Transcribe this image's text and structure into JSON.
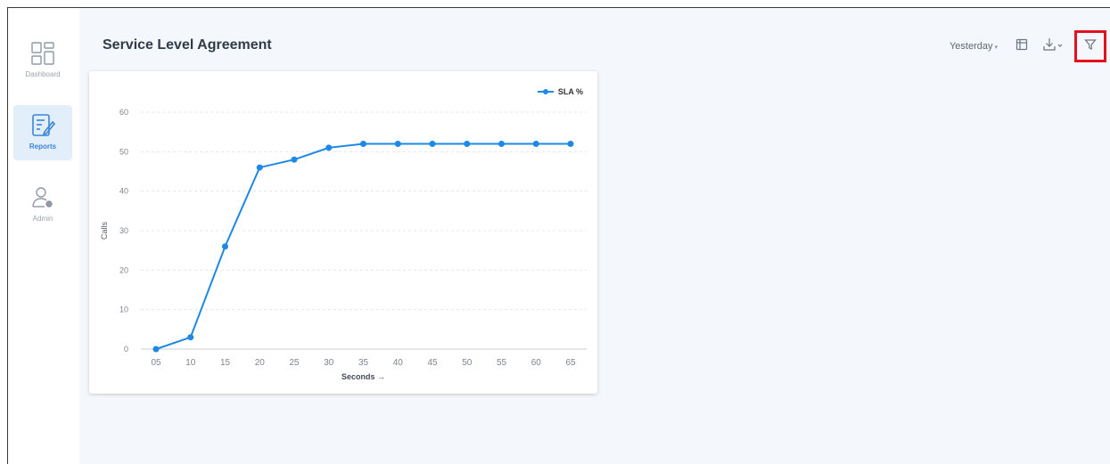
{
  "sidebar": {
    "items": [
      {
        "label": "Dashboard",
        "icon": "dashboard-icon"
      },
      {
        "label": "Reports",
        "icon": "reports-icon",
        "active": true
      },
      {
        "label": "Admin",
        "icon": "admin-user-icon"
      }
    ]
  },
  "header": {
    "title": "Service Level Agreement",
    "period_label": "Yesterday",
    "period_caret": "▾",
    "table_view_icon": "table-icon",
    "download_icon": "download-icon",
    "filter_icon": "filter-icon",
    "highlight_color": "#e3101e"
  },
  "chart_data": {
    "type": "line",
    "xlabel": "Seconds →",
    "ylabel": "Calls",
    "categories": [
      "05",
      "10",
      "15",
      "20",
      "25",
      "30",
      "35",
      "40",
      "45",
      "50",
      "55",
      "60",
      "65"
    ],
    "series": [
      {
        "name": "SLA %",
        "color": "#1e88e5",
        "values": [
          0,
          3,
          26,
          46,
          48,
          51,
          52,
          52,
          52,
          52,
          52,
          52,
          52
        ]
      }
    ],
    "ylim": [
      0,
      60
    ],
    "yticks": [
      0,
      10,
      20,
      30,
      40,
      50,
      60
    ],
    "grid": true,
    "legend_position": "top-right"
  }
}
